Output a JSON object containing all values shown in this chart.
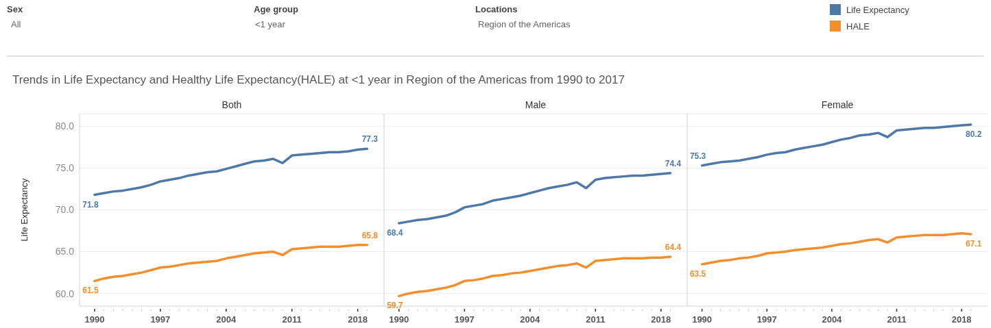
{
  "chart_data": [
    {
      "type": "line",
      "title": "Both",
      "ylabel": "Life Expectancy",
      "annotations": [
        "Sex",
        "All",
        "Age group",
        "<1 year",
        "Locations",
        "Region of the Americas",
        "Trends in Life Expectancy and Healthy Life Expectancy(HALE) at <1 year in Region of the Americas from 1990 to 2017"
      ],
      "legend": "top right",
      "grid": "y",
      "x": [
        1990,
        1991,
        1992,
        1993,
        1994,
        1995,
        1996,
        1997,
        1998,
        1999,
        2000,
        2001,
        2002,
        2003,
        2004,
        2005,
        2006,
        2007,
        2008,
        2009,
        2010,
        2011,
        2012,
        2013,
        2014,
        2015,
        2016,
        2017,
        2018,
        2019
      ],
      "xlim": [
        1988.4,
        2020.8
      ],
      "xticks": [
        1990,
        1997,
        2004,
        2011,
        2018
      ],
      "ylim": [
        58.5,
        81.5
      ],
      "yticks": [
        {
          "value": 60,
          "label": "60.0"
        },
        {
          "value": 65,
          "label": "65.0"
        },
        {
          "value": 70,
          "label": "70.0"
        },
        {
          "value": 75,
          "label": "75.0"
        },
        {
          "value": 80,
          "label": "80.0"
        }
      ],
      "series": [
        {
          "name": "Life Expectancy",
          "color": "#4e79a7",
          "values": [
            71.8,
            72.0,
            72.2,
            72.3,
            72.5,
            72.7,
            73.0,
            73.4,
            73.6,
            73.8,
            74.1,
            74.3,
            74.5,
            74.6,
            74.9,
            75.2,
            75.5,
            75.8,
            75.9,
            76.1,
            75.6,
            76.5,
            76.6,
            76.7,
            76.8,
            76.9,
            76.9,
            77.0,
            77.2,
            77.3
          ],
          "value_labels": [
            "71.8",
            null,
            null,
            null,
            null,
            null,
            null,
            null,
            null,
            null,
            null,
            null,
            null,
            null,
            null,
            null,
            null,
            null,
            null,
            null,
            null,
            null,
            null,
            null,
            null,
            null,
            null,
            null,
            null,
            "77.3"
          ]
        },
        {
          "name": "HALE",
          "color": "#f28e2b",
          "values": [
            61.5,
            61.8,
            62.0,
            62.1,
            62.3,
            62.5,
            62.8,
            63.1,
            63.2,
            63.4,
            63.6,
            63.7,
            63.8,
            63.9,
            64.2,
            64.4,
            64.6,
            64.8,
            64.9,
            65.0,
            64.6,
            65.3,
            65.4,
            65.5,
            65.6,
            65.6,
            65.6,
            65.7,
            65.8,
            65.8
          ],
          "value_labels": [
            "61.5",
            null,
            null,
            null,
            null,
            null,
            null,
            null,
            null,
            null,
            null,
            null,
            null,
            null,
            null,
            null,
            null,
            null,
            null,
            null,
            null,
            null,
            null,
            null,
            null,
            null,
            null,
            null,
            null,
            "65.8"
          ]
        }
      ]
    },
    {
      "type": "line",
      "title": "Male",
      "grid": "y",
      "tick_labels": "x",
      "x": [
        1990,
        1991,
        1992,
        1993,
        1994,
        1995,
        1996,
        1997,
        1998,
        1999,
        2000,
        2001,
        2002,
        2003,
        2004,
        2005,
        2006,
        2007,
        2008,
        2009,
        2010,
        2011,
        2012,
        2013,
        2014,
        2015,
        2016,
        2017,
        2018,
        2019
      ],
      "xlim": [
        1988.4,
        2020.8
      ],
      "xticks": [
        1990,
        1997,
        2004,
        2011,
        2018
      ],
      "ylim": [
        58.5,
        81.5
      ],
      "yticks": [
        60,
        65,
        70,
        75,
        80
      ],
      "series": [
        {
          "color": "#4e79a7",
          "values": [
            68.4,
            68.6,
            68.8,
            68.9,
            69.1,
            69.3,
            69.7,
            70.3,
            70.5,
            70.7,
            71.1,
            71.3,
            71.5,
            71.7,
            72.0,
            72.3,
            72.6,
            72.8,
            73.0,
            73.3,
            72.6,
            73.6,
            73.8,
            73.9,
            74.0,
            74.1,
            74.1,
            74.2,
            74.3,
            74.4
          ],
          "value_labels": [
            "68.4",
            null,
            null,
            null,
            null,
            null,
            null,
            null,
            null,
            null,
            null,
            null,
            null,
            null,
            null,
            null,
            null,
            null,
            null,
            null,
            null,
            null,
            null,
            null,
            null,
            null,
            null,
            null,
            null,
            "74.4"
          ]
        },
        {
          "color": "#f28e2b",
          "values": [
            59.7,
            60.0,
            60.2,
            60.3,
            60.5,
            60.7,
            61.0,
            61.5,
            61.6,
            61.8,
            62.1,
            62.2,
            62.4,
            62.5,
            62.7,
            62.9,
            63.1,
            63.3,
            63.4,
            63.6,
            63.1,
            63.9,
            64.0,
            64.1,
            64.2,
            64.2,
            64.2,
            64.3,
            64.3,
            64.4
          ],
          "value_labels": [
            "59.7",
            null,
            null,
            null,
            null,
            null,
            null,
            null,
            null,
            null,
            null,
            null,
            null,
            null,
            null,
            null,
            null,
            null,
            null,
            null,
            null,
            null,
            null,
            null,
            null,
            null,
            null,
            null,
            null,
            "64.4"
          ]
        }
      ]
    },
    {
      "type": "line",
      "title": "Female",
      "grid": "y",
      "tick_labels": "x",
      "x": [
        1990,
        1991,
        1992,
        1993,
        1994,
        1995,
        1996,
        1997,
        1998,
        1999,
        2000,
        2001,
        2002,
        2003,
        2004,
        2005,
        2006,
        2007,
        2008,
        2009,
        2010,
        2011,
        2012,
        2013,
        2014,
        2015,
        2016,
        2017,
        2018,
        2019
      ],
      "xlim": [
        1988.4,
        2020.8
      ],
      "xticks": [
        1990,
        1997,
        2004,
        2011,
        2018
      ],
      "ylim": [
        58.5,
        81.5
      ],
      "yticks": [
        60,
        65,
        70,
        75,
        80
      ],
      "series": [
        {
          "color": "#4e79a7",
          "values": [
            75.3,
            75.5,
            75.7,
            75.8,
            75.9,
            76.1,
            76.3,
            76.6,
            76.8,
            76.9,
            77.2,
            77.4,
            77.6,
            77.8,
            78.1,
            78.4,
            78.6,
            78.9,
            79.0,
            79.2,
            78.7,
            79.5,
            79.6,
            79.7,
            79.8,
            79.8,
            79.9,
            80.0,
            80.1,
            80.2
          ],
          "value_labels": [
            "75.3",
            null,
            null,
            null,
            null,
            null,
            null,
            null,
            null,
            null,
            null,
            null,
            null,
            null,
            null,
            null,
            null,
            null,
            null,
            null,
            null,
            null,
            null,
            null,
            null,
            null,
            null,
            null,
            null,
            "80.2"
          ]
        },
        {
          "color": "#f28e2b",
          "values": [
            63.5,
            63.7,
            63.9,
            64.0,
            64.2,
            64.3,
            64.5,
            64.8,
            64.9,
            65.0,
            65.2,
            65.3,
            65.4,
            65.5,
            65.7,
            65.9,
            66.0,
            66.2,
            66.4,
            66.5,
            66.1,
            66.7,
            66.8,
            66.9,
            67.0,
            67.0,
            67.0,
            67.1,
            67.2,
            67.1
          ],
          "value_labels": [
            "63.5",
            null,
            null,
            null,
            null,
            null,
            null,
            null,
            null,
            null,
            null,
            null,
            null,
            null,
            null,
            null,
            null,
            null,
            null,
            null,
            null,
            null,
            null,
            null,
            null,
            null,
            null,
            null,
            null,
            "67.1"
          ]
        }
      ]
    }
  ]
}
